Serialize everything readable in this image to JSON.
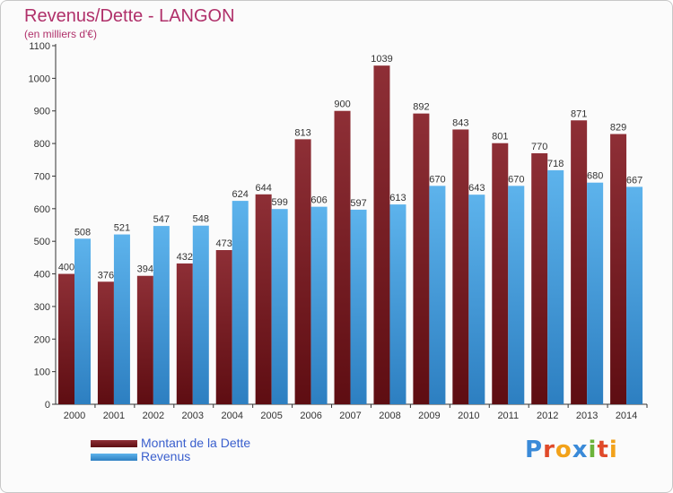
{
  "header": {
    "title": "Revenus/Dette - LANGON",
    "subtitle": "(en milliers d'€)"
  },
  "logo": {
    "text": "Proxiti"
  },
  "colors": {
    "dette": "#7d1f26",
    "revenus": "#4fa3e0",
    "axis": "#333333"
  },
  "chart_data": {
    "type": "bar",
    "title": "Revenus/Dette - LANGON",
    "subtitle": "(en milliers d'€)",
    "xlabel": "",
    "ylabel": "",
    "ylim": [
      0,
      1100
    ],
    "yticks": [
      0,
      100,
      200,
      300,
      400,
      500,
      600,
      700,
      800,
      900,
      1000,
      1100
    ],
    "grid": false,
    "legend_position": "bottom-left",
    "categories": [
      "2000",
      "2001",
      "2002",
      "2003",
      "2004",
      "2005",
      "2006",
      "2007",
      "2008",
      "2009",
      "2010",
      "2011",
      "2012",
      "2013",
      "2014"
    ],
    "series": [
      {
        "name": "Montant de la Dette",
        "values": [
          400,
          376,
          394,
          432,
          473,
          644,
          813,
          900,
          1039,
          892,
          843,
          801,
          770,
          871,
          829
        ]
      },
      {
        "name": "Revenus",
        "values": [
          508,
          521,
          547,
          548,
          624,
          599,
          606,
          597,
          613,
          670,
          643,
          670,
          718,
          680,
          667
        ]
      }
    ]
  }
}
